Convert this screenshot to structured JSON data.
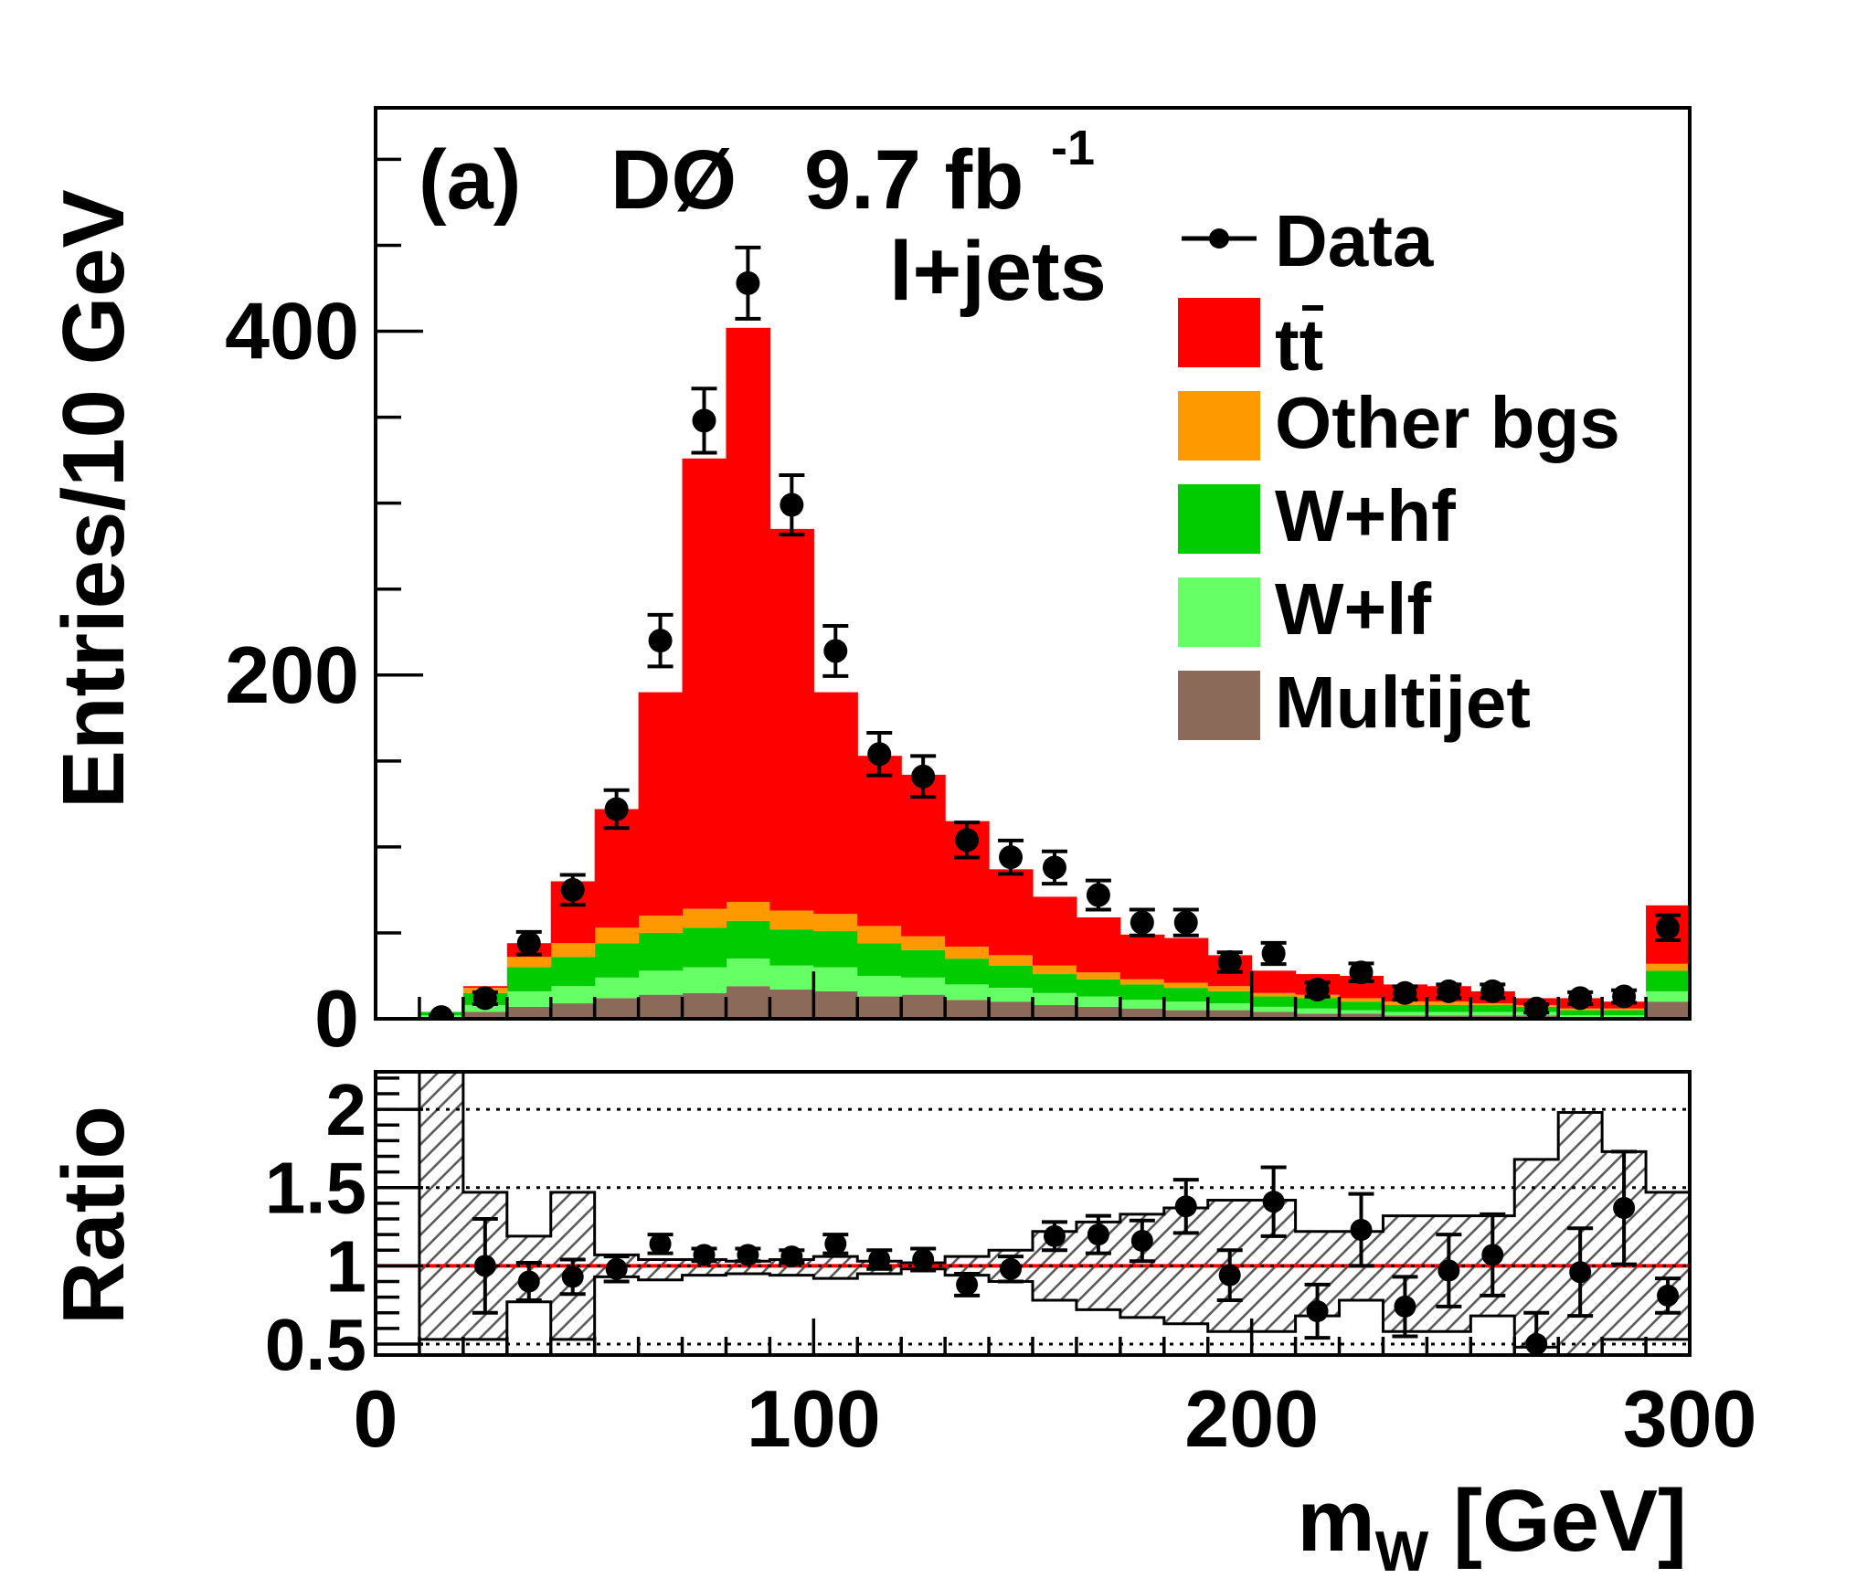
{
  "chart_data": [
    {
      "panel": "main",
      "type": "bar",
      "stacked": true,
      "annotation": {
        "panel_label": "(a)",
        "experiment": "DØ",
        "luminosity": "9.7 fb",
        "luminosity_exp": "-1",
        "channel": "l+jets"
      },
      "ylabel": "Entries/10 GeV",
      "xlim": [
        0,
        300
      ],
      "ylim": [
        0,
        530
      ],
      "yticks": [
        "0",
        "200",
        "400"
      ],
      "bin_edges": [
        0,
        10,
        20,
        30,
        40,
        50,
        60,
        70,
        80,
        90,
        100,
        110,
        120,
        130,
        140,
        150,
        160,
        170,
        180,
        190,
        200,
        210,
        220,
        230,
        240,
        250,
        260,
        270,
        280,
        290,
        300
      ],
      "legend": {
        "position": "top-right",
        "data_label": "Data",
        "ttbar_label": "tt",
        "other_label": "Other bgs",
        "whf_label": "W+hf",
        "wlf_label": "W+lf",
        "multijet_label": "Multijet"
      },
      "series": [
        {
          "key": "multijet",
          "color": "#8b6a5a",
          "values": [
            0,
            1,
            4,
            7,
            9,
            12,
            14,
            15,
            19,
            17,
            16,
            13,
            14,
            11,
            10,
            8,
            7,
            6,
            5,
            5,
            4,
            3,
            3,
            2,
            2,
            2,
            2,
            1,
            1,
            10
          ]
        },
        {
          "key": "wlf",
          "color": "#66ff66",
          "values": [
            0,
            1,
            4,
            9,
            10,
            12,
            14,
            15,
            16,
            14,
            14,
            12,
            10,
            9,
            8,
            7,
            6,
            5,
            5,
            4,
            3,
            3,
            2,
            2,
            2,
            2,
            2,
            1,
            1,
            6
          ]
        },
        {
          "key": "whf",
          "color": "#00cc00",
          "values": [
            0,
            2,
            7,
            14,
            17,
            20,
            22,
            23,
            22,
            21,
            21,
            19,
            16,
            15,
            13,
            11,
            10,
            9,
            8,
            7,
            6,
            6,
            5,
            4,
            4,
            4,
            3,
            3,
            3,
            12
          ]
        },
        {
          "key": "other",
          "color": "#ff9900",
          "values": [
            0,
            0,
            3,
            6,
            8,
            9,
            10,
            11,
            11,
            11,
            10,
            10,
            8,
            7,
            6,
            5,
            4,
            3,
            3,
            3,
            2,
            2,
            2,
            2,
            2,
            1,
            1,
            1,
            1,
            4
          ]
        },
        {
          "key": "ttbar",
          "color": "#ff0000",
          "values": [
            0,
            0,
            1,
            8,
            36,
            69,
            130,
            262,
            334,
            222,
            129,
            99,
            94,
            73,
            50,
            40,
            32,
            26,
            26,
            18,
            13,
            12,
            13,
            10,
            9,
            7,
            4,
            6,
            4,
            34
          ]
        }
      ],
      "data_points": {
        "x": [
          15,
          25,
          35,
          45,
          55,
          65,
          75,
          85,
          95,
          105,
          115,
          125,
          135,
          145,
          155,
          165,
          175,
          185,
          195,
          205,
          215,
          225,
          235,
          245,
          255,
          265,
          275,
          285,
          295
        ],
        "y": [
          1,
          12,
          44,
          75,
          122,
          220,
          348,
          428,
          299,
          214,
          154,
          141,
          104,
          94,
          88,
          72,
          56,
          56,
          33,
          38,
          17,
          27,
          15,
          16,
          16,
          6,
          12,
          13,
          53
        ],
        "err": [
          1,
          3.5,
          6.6,
          8.7,
          11,
          15,
          18.7,
          20.7,
          17.3,
          14.6,
          12.4,
          11.9,
          10.2,
          9.7,
          9.4,
          8.5,
          7.5,
          7.5,
          5.7,
          6.2,
          4.1,
          5.2,
          3.9,
          4,
          4,
          2.4,
          3.5,
          3.6,
          7.3
        ]
      }
    },
    {
      "panel": "ratio",
      "type": "scatter",
      "ylabel": "Ratio",
      "xlabel": "m",
      "xlabel_sub": "W",
      "xlabel_unit": " [GeV]",
      "xlim": [
        0,
        300
      ],
      "ylim": [
        0.43,
        2.24
      ],
      "xticks": [
        "0",
        "100",
        "200",
        "300"
      ],
      "yticks": [
        "0.5",
        "1",
        "1.5",
        "2"
      ],
      "reference_line": 1.0,
      "band": {
        "bin_edges": [
          10,
          20,
          30,
          40,
          50,
          60,
          70,
          80,
          90,
          100,
          110,
          120,
          130,
          140,
          150,
          160,
          170,
          180,
          190,
          200,
          210,
          220,
          230,
          240,
          250,
          260,
          270,
          280,
          290,
          300
        ],
        "upper": [
          2.24,
          1.47,
          1.19,
          1.47,
          1.07,
          1.04,
          1.04,
          1.03,
          1.04,
          1.06,
          1.03,
          1.02,
          1.06,
          1.1,
          1.22,
          1.28,
          1.33,
          1.37,
          1.42,
          1.42,
          1.22,
          1.22,
          1.32,
          1.32,
          1.32,
          1.68,
          1.98,
          1.73,
          1.47
        ],
        "lower": [
          0.53,
          0.53,
          0.77,
          0.53,
          0.93,
          0.91,
          0.94,
          0.95,
          0.94,
          0.92,
          0.95,
          0.98,
          0.94,
          0.9,
          0.78,
          0.72,
          0.67,
          0.63,
          0.58,
          0.58,
          0.68,
          0.78,
          0.58,
          0.58,
          0.68,
          0.48,
          0.43,
          0.53,
          0.53
        ]
      },
      "points": {
        "x": [
          25,
          35,
          45,
          55,
          65,
          75,
          85,
          95,
          105,
          115,
          125,
          135,
          145,
          155,
          165,
          175,
          185,
          195,
          205,
          215,
          225,
          235,
          245,
          255,
          265,
          275,
          285,
          295
        ],
        "y": [
          1.0,
          0.9,
          0.93,
          0.98,
          1.14,
          1.07,
          1.07,
          1.06,
          1.14,
          1.04,
          1.04,
          0.88,
          0.98,
          1.19,
          1.2,
          1.16,
          1.38,
          0.94,
          1.41,
          0.71,
          1.23,
          0.74,
          0.97,
          1.07,
          0.5,
          0.96,
          1.37,
          0.81
        ],
        "err": [
          0.3,
          0.12,
          0.11,
          0.08,
          0.06,
          0.04,
          0.04,
          0.04,
          0.06,
          0.06,
          0.07,
          0.07,
          0.08,
          0.09,
          0.12,
          0.13,
          0.17,
          0.16,
          0.22,
          0.17,
          0.23,
          0.19,
          0.23,
          0.26,
          0.2,
          0.28,
          0.36,
          0.11
        ]
      }
    }
  ]
}
